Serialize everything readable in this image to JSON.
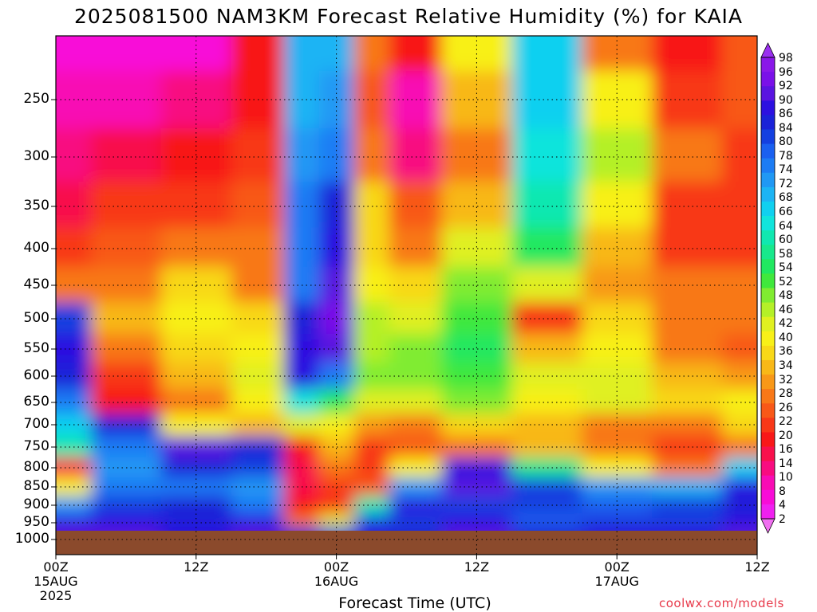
{
  "title": "2025081500 NAM3KM Forecast Relative Humidity (%) for KAIA",
  "credit": "coolwx.com/models",
  "chart_data": {
    "type": "heatmap",
    "title": "2025081500 NAM3KM Forecast Relative Humidity (%) for KAIA",
    "xlabel": "Forecast Time (UTC)",
    "ylabel": "",
    "y_ticks": [
      "250",
      "300",
      "350",
      "400",
      "450",
      "500",
      "550",
      "600",
      "650",
      "700",
      "750",
      "800",
      "850",
      "900",
      "950",
      "1000"
    ],
    "x_ticks": [
      {
        "label": "00Z",
        "sub": "15AUG",
        "sub2": "2025",
        "hour": 0
      },
      {
        "label": "12Z",
        "sub": "",
        "sub2": "",
        "hour": 12
      },
      {
        "label": "00Z",
        "sub": "16AUG",
        "sub2": "",
        "hour": 24
      },
      {
        "label": "12Z",
        "sub": "",
        "sub2": "",
        "hour": 36
      },
      {
        "label": "00Z",
        "sub": "17AUG",
        "sub2": "",
        "hour": 48
      },
      {
        "label": "12Z",
        "sub": "",
        "sub2": "",
        "hour": 60
      }
    ],
    "colorbar_levels": [
      98,
      96,
      92,
      90,
      86,
      84,
      80,
      78,
      74,
      72,
      68,
      66,
      64,
      60,
      58,
      54,
      52,
      48,
      46,
      42,
      40,
      36,
      34,
      32,
      28,
      26,
      22,
      20,
      16,
      14,
      10,
      8,
      4,
      2
    ],
    "colorbar_colors": [
      "#8a18e8",
      "#7a10e8",
      "#5a14e0",
      "#2c10e0",
      "#1a22d8",
      "#1440e0",
      "#1a60f0",
      "#1c7cf4",
      "#2098f4",
      "#1cb4f4",
      "#10d0f0",
      "#10e4dc",
      "#10e8b0",
      "#18e88c",
      "#20e860",
      "#40e83c",
      "#80ec30",
      "#b4f028",
      "#e0f020",
      "#f8f018",
      "#f8d818",
      "#f8b818",
      "#f89818",
      "#f87818",
      "#f85818",
      "#f83818",
      "#f81818",
      "#f8104c",
      "#f80c80",
      "#f80cb4",
      "#f80cd8",
      "#f020f0"
    ],
    "pressure_rows": [
      200,
      250,
      300,
      350,
      400,
      450,
      500,
      550,
      600,
      650,
      700,
      750,
      800,
      850,
      900,
      950,
      975
    ],
    "forecast_hours": [
      0,
      6,
      12,
      18,
      21,
      24,
      27,
      30,
      36,
      42,
      48,
      54,
      60
    ],
    "rh_grid": [
      [
        8,
        8,
        8,
        20,
        70,
        70,
        30,
        20,
        40,
        66,
        30,
        20,
        26
      ],
      [
        10,
        12,
        14,
        20,
        70,
        72,
        26,
        12,
        34,
        66,
        40,
        24,
        26
      ],
      [
        14,
        18,
        20,
        24,
        72,
        76,
        30,
        14,
        30,
        64,
        46,
        30,
        24
      ],
      [
        18,
        22,
        22,
        26,
        74,
        84,
        36,
        26,
        34,
        60,
        40,
        24,
        22
      ],
      [
        22,
        26,
        28,
        28,
        74,
        86,
        36,
        28,
        42,
        56,
        34,
        22,
        24
      ],
      [
        28,
        30,
        36,
        30,
        76,
        90,
        40,
        36,
        48,
        44,
        32,
        28,
        30
      ],
      [
        80,
        34,
        40,
        36,
        84,
        92,
        46,
        44,
        52,
        22,
        36,
        30,
        30
      ],
      [
        86,
        30,
        38,
        40,
        88,
        90,
        46,
        50,
        54,
        34,
        40,
        30,
        26
      ],
      [
        84,
        22,
        34,
        44,
        86,
        74,
        50,
        48,
        52,
        44,
        44,
        34,
        32
      ],
      [
        74,
        20,
        30,
        40,
        64,
        54,
        42,
        44,
        48,
        40,
        42,
        36,
        40
      ],
      [
        66,
        84,
        40,
        34,
        44,
        40,
        32,
        30,
        36,
        34,
        30,
        28,
        36
      ],
      [
        60,
        76,
        90,
        84,
        20,
        34,
        22,
        26,
        30,
        34,
        28,
        22,
        30
      ],
      [
        18,
        72,
        84,
        80,
        18,
        30,
        22,
        40,
        86,
        58,
        40,
        28,
        66
      ],
      [
        40,
        74,
        76,
        72,
        18,
        24,
        26,
        72,
        90,
        80,
        72,
        70,
        86
      ],
      [
        72,
        80,
        84,
        76,
        20,
        22,
        60,
        86,
        82,
        80,
        78,
        80,
        84
      ],
      [
        86,
        88,
        84,
        86,
        30,
        44,
        80,
        80,
        88,
        78,
        80,
        82,
        86
      ],
      [
        90,
        90,
        88,
        90,
        84,
        80,
        86,
        84,
        90,
        84,
        86,
        88,
        90
      ]
    ],
    "ground_color": "#8b4a2c"
  }
}
